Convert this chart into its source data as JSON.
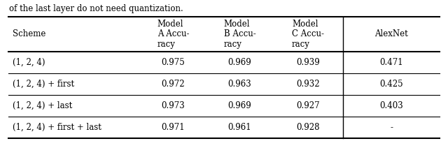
{
  "caption": "of the last layer do not need quantization.",
  "col_headers": [
    "Scheme",
    "Model\nA Accu-\nracy",
    "Model\nB Accu-\nracy",
    "Model\nC Accu-\nracy",
    "AlexNet"
  ],
  "rows": [
    [
      "(1, 2, 4)",
      "0.975",
      "0.969",
      "0.939",
      "0.471"
    ],
    [
      "(1, 2, 4) + first",
      "0.972",
      "0.963",
      "0.932",
      "0.425"
    ],
    [
      "(1, 2, 4) + last",
      "0.973",
      "0.969",
      "0.927",
      "0.403"
    ],
    [
      "(1, 2, 4) + first + last",
      "0.971",
      "0.961",
      "0.928",
      "-"
    ]
  ],
  "font_size": 8.5,
  "bg_color": "#ffffff",
  "line_color": "#000000",
  "text_color": "#000000",
  "caption_fontsize": 8.5
}
